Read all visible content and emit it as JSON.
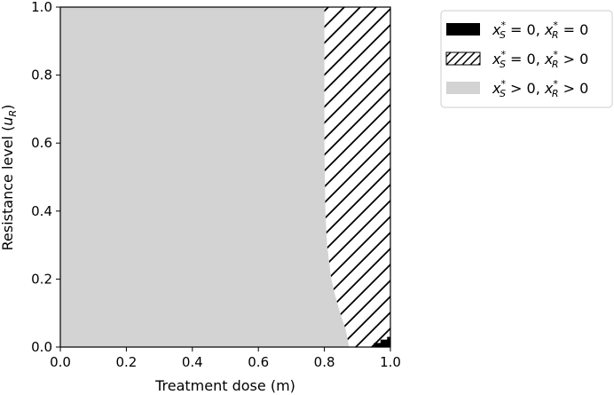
{
  "chart_data": {
    "type": "area",
    "xlabel": "Treatment dose (m)",
    "ylabel_main": "Resistance level (",
    "ylabel_var": "u",
    "ylabel_sub": "R",
    "ylabel_close": ")",
    "xlim": [
      0.0,
      1.0
    ],
    "ylim": [
      0.0,
      1.0
    ],
    "xticks": [
      "0.0",
      "0.2",
      "0.4",
      "0.6",
      "0.8",
      "1.0"
    ],
    "yticks": [
      "0.0",
      "0.2",
      "0.4",
      "0.6",
      "0.8",
      "1.0"
    ],
    "grid": false,
    "legend_position": "top-right outside",
    "colors": {
      "coexistence": "#d3d3d3",
      "hatch": "#000000",
      "extinction": "#000000"
    },
    "regions": [
      {
        "key": "coexistence",
        "label_parts": [
          "x",
          "S",
          "*",
          " > 0, ",
          "x",
          "R",
          "*",
          " > 0"
        ],
        "fill": "gray",
        "boundary": [
          {
            "u": 0.0,
            "m": 0.875
          },
          {
            "u": 0.05,
            "m": 0.865
          },
          {
            "u": 0.1,
            "m": 0.848
          },
          {
            "u": 0.15,
            "m": 0.833
          },
          {
            "u": 0.2,
            "m": 0.821
          },
          {
            "u": 0.3,
            "m": 0.808
          },
          {
            "u": 0.4,
            "m": 0.803
          },
          {
            "u": 0.6,
            "m": 0.8
          },
          {
            "u": 0.8,
            "m": 0.8
          },
          {
            "u": 1.0,
            "m": 0.8
          }
        ]
      },
      {
        "key": "resistant_only",
        "label_parts": [
          "x",
          "S",
          "*",
          " = 0, ",
          "x",
          "R",
          "*",
          " > 0"
        ],
        "fill": "hatch"
      },
      {
        "key": "extinction",
        "label_parts": [
          "x",
          "S",
          "*",
          " = 0, ",
          "x",
          "R",
          "*",
          " = 0"
        ],
        "fill": "black",
        "boundary": [
          {
            "m": 0.93,
            "u": 0.0
          },
          {
            "m": 0.95,
            "u": 0.012
          },
          {
            "m": 0.97,
            "u": 0.022
          },
          {
            "m": 0.99,
            "u": 0.03
          },
          {
            "m": 1.0,
            "u": 0.032
          }
        ]
      }
    ],
    "legend_order": [
      "extinction",
      "resistant_only",
      "coexistence"
    ]
  }
}
